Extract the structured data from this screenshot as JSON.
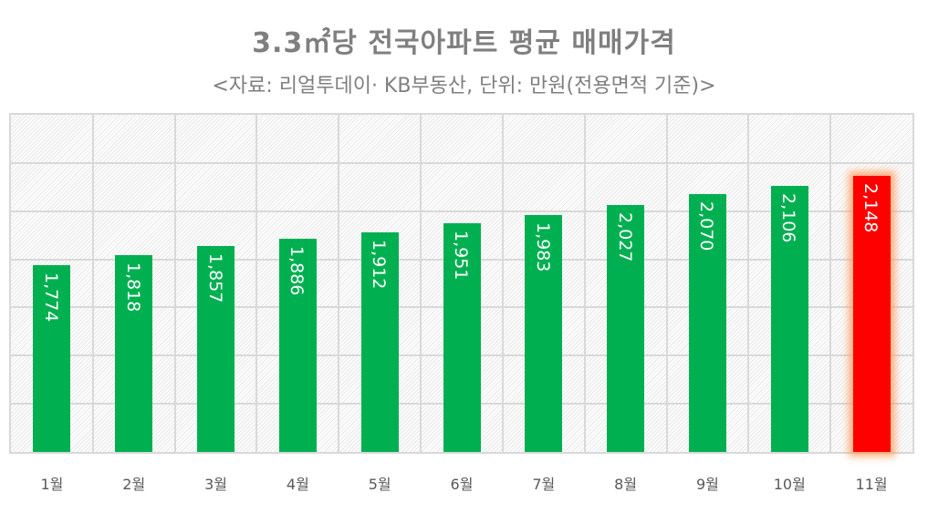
{
  "chart_data": {
    "type": "bar",
    "title": "3.3㎡당  전국아파트 평균 매매가격",
    "subtitle": "<자료: 리얼투데이· KB부동산, 단위: 만원(전용면적 기준)>",
    "categories": [
      "1월",
      "2월",
      "3월",
      "4월",
      "5월",
      "6월",
      "7월",
      "8월",
      "9월",
      "10월",
      "11월"
    ],
    "values": [
      1774,
      1818,
      1857,
      1886,
      1912,
      1951,
      1983,
      2027,
      2070,
      2106,
      2148
    ],
    "value_labels": [
      "1,774",
      "1,818",
      "1,857",
      "1,886",
      "1,912",
      "1,951",
      "1,983",
      "2,027",
      "2,070",
      "2,106",
      "2,148"
    ],
    "xlabel": "",
    "ylabel": "",
    "ylim": [
      1000,
      2400
    ],
    "ytick_step": 200,
    "y_axis_labels_visible": false,
    "grid": true,
    "legend": null,
    "data_label_orientation": "rotated-vertical-inside-top",
    "highlight_index": 10
  },
  "colors": {
    "bar": "#00b050",
    "highlight_bar": "#ff0000",
    "highlight_glow": "#ff9650",
    "title": "#7f7f7f",
    "axis_label": "#595959",
    "grid": "#d9d9d9"
  }
}
